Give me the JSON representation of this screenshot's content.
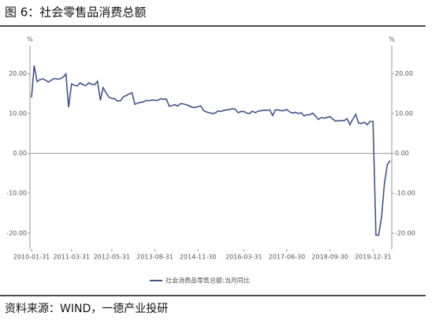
{
  "chart_data": {
    "type": "line",
    "title": "图 6：社会零售品消费总额",
    "source": "资料来源：WIND，一德产业投研",
    "y_unit": "%",
    "y2_unit": "%",
    "x": [
      "2010-01-31",
      "2010-02-28",
      "2010-03-31",
      "2010-04-30",
      "2010-05-31",
      "2010-06-30",
      "2010-07-31",
      "2010-08-31",
      "2010-09-30",
      "2010-10-31",
      "2010-11-30",
      "2010-12-31",
      "2011-01-31",
      "2011-02-28",
      "2011-03-31",
      "2011-04-30",
      "2011-05-31",
      "2011-06-30",
      "2011-07-31",
      "2011-08-31",
      "2011-09-30",
      "2011-10-31",
      "2011-11-30",
      "2011-12-31",
      "2012-01-31",
      "2012-02-29",
      "2012-03-31",
      "2012-04-30",
      "2012-05-31",
      "2012-06-30",
      "2012-07-31",
      "2012-08-31",
      "2012-09-30",
      "2012-10-31",
      "2012-11-30",
      "2012-12-31",
      "2013-01-31",
      "2013-02-28",
      "2013-03-31",
      "2013-04-30",
      "2013-05-31",
      "2013-06-30",
      "2013-07-31",
      "2013-08-31",
      "2013-09-30",
      "2013-10-31",
      "2013-11-30",
      "2013-12-31",
      "2014-01-31",
      "2014-02-28",
      "2014-03-31",
      "2014-04-30",
      "2014-05-31",
      "2014-06-30",
      "2014-07-31",
      "2014-08-31",
      "2014-09-30",
      "2014-10-31",
      "2014-11-30",
      "2014-12-31",
      "2015-01-31",
      "2015-02-28",
      "2015-03-31",
      "2015-04-30",
      "2015-05-31",
      "2015-06-30",
      "2015-07-31",
      "2015-08-31",
      "2015-09-30",
      "2015-10-31",
      "2015-11-30",
      "2015-12-31",
      "2016-01-31",
      "2016-02-29",
      "2016-03-31",
      "2016-04-30",
      "2016-05-31",
      "2016-06-30",
      "2016-07-31",
      "2016-08-31",
      "2016-09-30",
      "2016-10-31",
      "2016-11-30",
      "2016-12-31",
      "2017-01-31",
      "2017-02-28",
      "2017-03-31",
      "2017-04-30",
      "2017-05-31",
      "2017-06-30",
      "2017-07-31",
      "2017-08-31",
      "2017-09-30",
      "2017-10-31",
      "2017-11-30",
      "2017-12-31",
      "2018-01-31",
      "2018-02-28",
      "2018-03-31",
      "2018-04-30",
      "2018-05-31",
      "2018-06-30",
      "2018-07-31",
      "2018-08-31",
      "2018-09-30",
      "2018-10-31",
      "2018-11-30",
      "2018-12-31",
      "2019-01-31",
      "2019-02-28",
      "2019-03-31",
      "2019-04-30",
      "2019-05-31",
      "2019-06-30",
      "2019-07-31",
      "2019-08-31",
      "2019-09-30",
      "2019-10-31",
      "2019-11-30",
      "2019-12-31",
      "2020-01-31",
      "2020-02-29",
      "2020-03-31",
      "2020-04-30",
      "2020-05-31",
      "2020-06-30"
    ],
    "series": [
      {
        "name": "社会消费品零售总额:当月同比",
        "color": "#44528a",
        "values": [
          14,
          22,
          18,
          18.5,
          18.7,
          18.3,
          17.9,
          18.4,
          18.8,
          18.6,
          18.7,
          19.1,
          19.9,
          11.6,
          17.4,
          17.1,
          16.9,
          17.7,
          17.2,
          17,
          17.7,
          17.3,
          17.2,
          18.1,
          13.3,
          16.5,
          15.2,
          14.1,
          13.8,
          13.7,
          13.1,
          13.2,
          14.2,
          14.5,
          14.9,
          15.2,
          12.3,
          12.6,
          12.8,
          12.9,
          13.3,
          13.2,
          13.4,
          13.3,
          13.3,
          13.7,
          13.6,
          13.6,
          11.8,
          12,
          12.2,
          11.9,
          12.5,
          12.4,
          12.2,
          11.9,
          11.6,
          11.5,
          11.7,
          11.9,
          10.7,
          10.4,
          10.2,
          10,
          10.1,
          10.6,
          10.5,
          10.8,
          10.9,
          11,
          11.2,
          11.1,
          10.2,
          10.5,
          10.5,
          10.1,
          10,
          10.6,
          10.2,
          10.6,
          10.7,
          10.8,
          10.8,
          10.9,
          9.5,
          10.9,
          10.9,
          10.7,
          10.7,
          11,
          10.4,
          10.1,
          10.3,
          10,
          10.2,
          9.4,
          9.7,
          9.7,
          10.1,
          9.4,
          8.5,
          9,
          8.8,
          9,
          9.2,
          8.6,
          8.1,
          8.2,
          8.2,
          8.2,
          8.7,
          7.2,
          8.6,
          9.8,
          7.6,
          7.5,
          7.8,
          7.2,
          8,
          8,
          -20.5,
          -20.5,
          -15.8,
          -7.5,
          -2.8,
          -1.8
        ]
      }
    ],
    "xlim": [
      "2010-01-31",
      "2020-06-30"
    ],
    "xticks": [
      "2010-01-31",
      "2011-03-31",
      "2012-05-31",
      "2013-08-31",
      "2014-11-30",
      "2016-03-31",
      "2017-06-30",
      "2018-09-30",
      "2019-12-31"
    ],
    "ylim": [
      -24,
      27
    ],
    "yticks": [
      {
        "value": 20,
        "label": "20.00"
      },
      {
        "value": 10,
        "label": "10.00"
      },
      {
        "value": 0,
        "label": "0.00"
      },
      {
        "value": -10,
        "label": "-10.00"
      },
      {
        "value": -20,
        "label": "-20.00"
      }
    ],
    "y2lim": [
      -24,
      27
    ],
    "y2ticks": [
      {
        "value": 20,
        "label": "20.00"
      },
      {
        "value": 10,
        "label": "10.00"
      },
      {
        "value": 0,
        "label": "0.00"
      },
      {
        "value": -10,
        "label": "-10.00"
      },
      {
        "value": -20,
        "label": "-20.00"
      }
    ]
  }
}
